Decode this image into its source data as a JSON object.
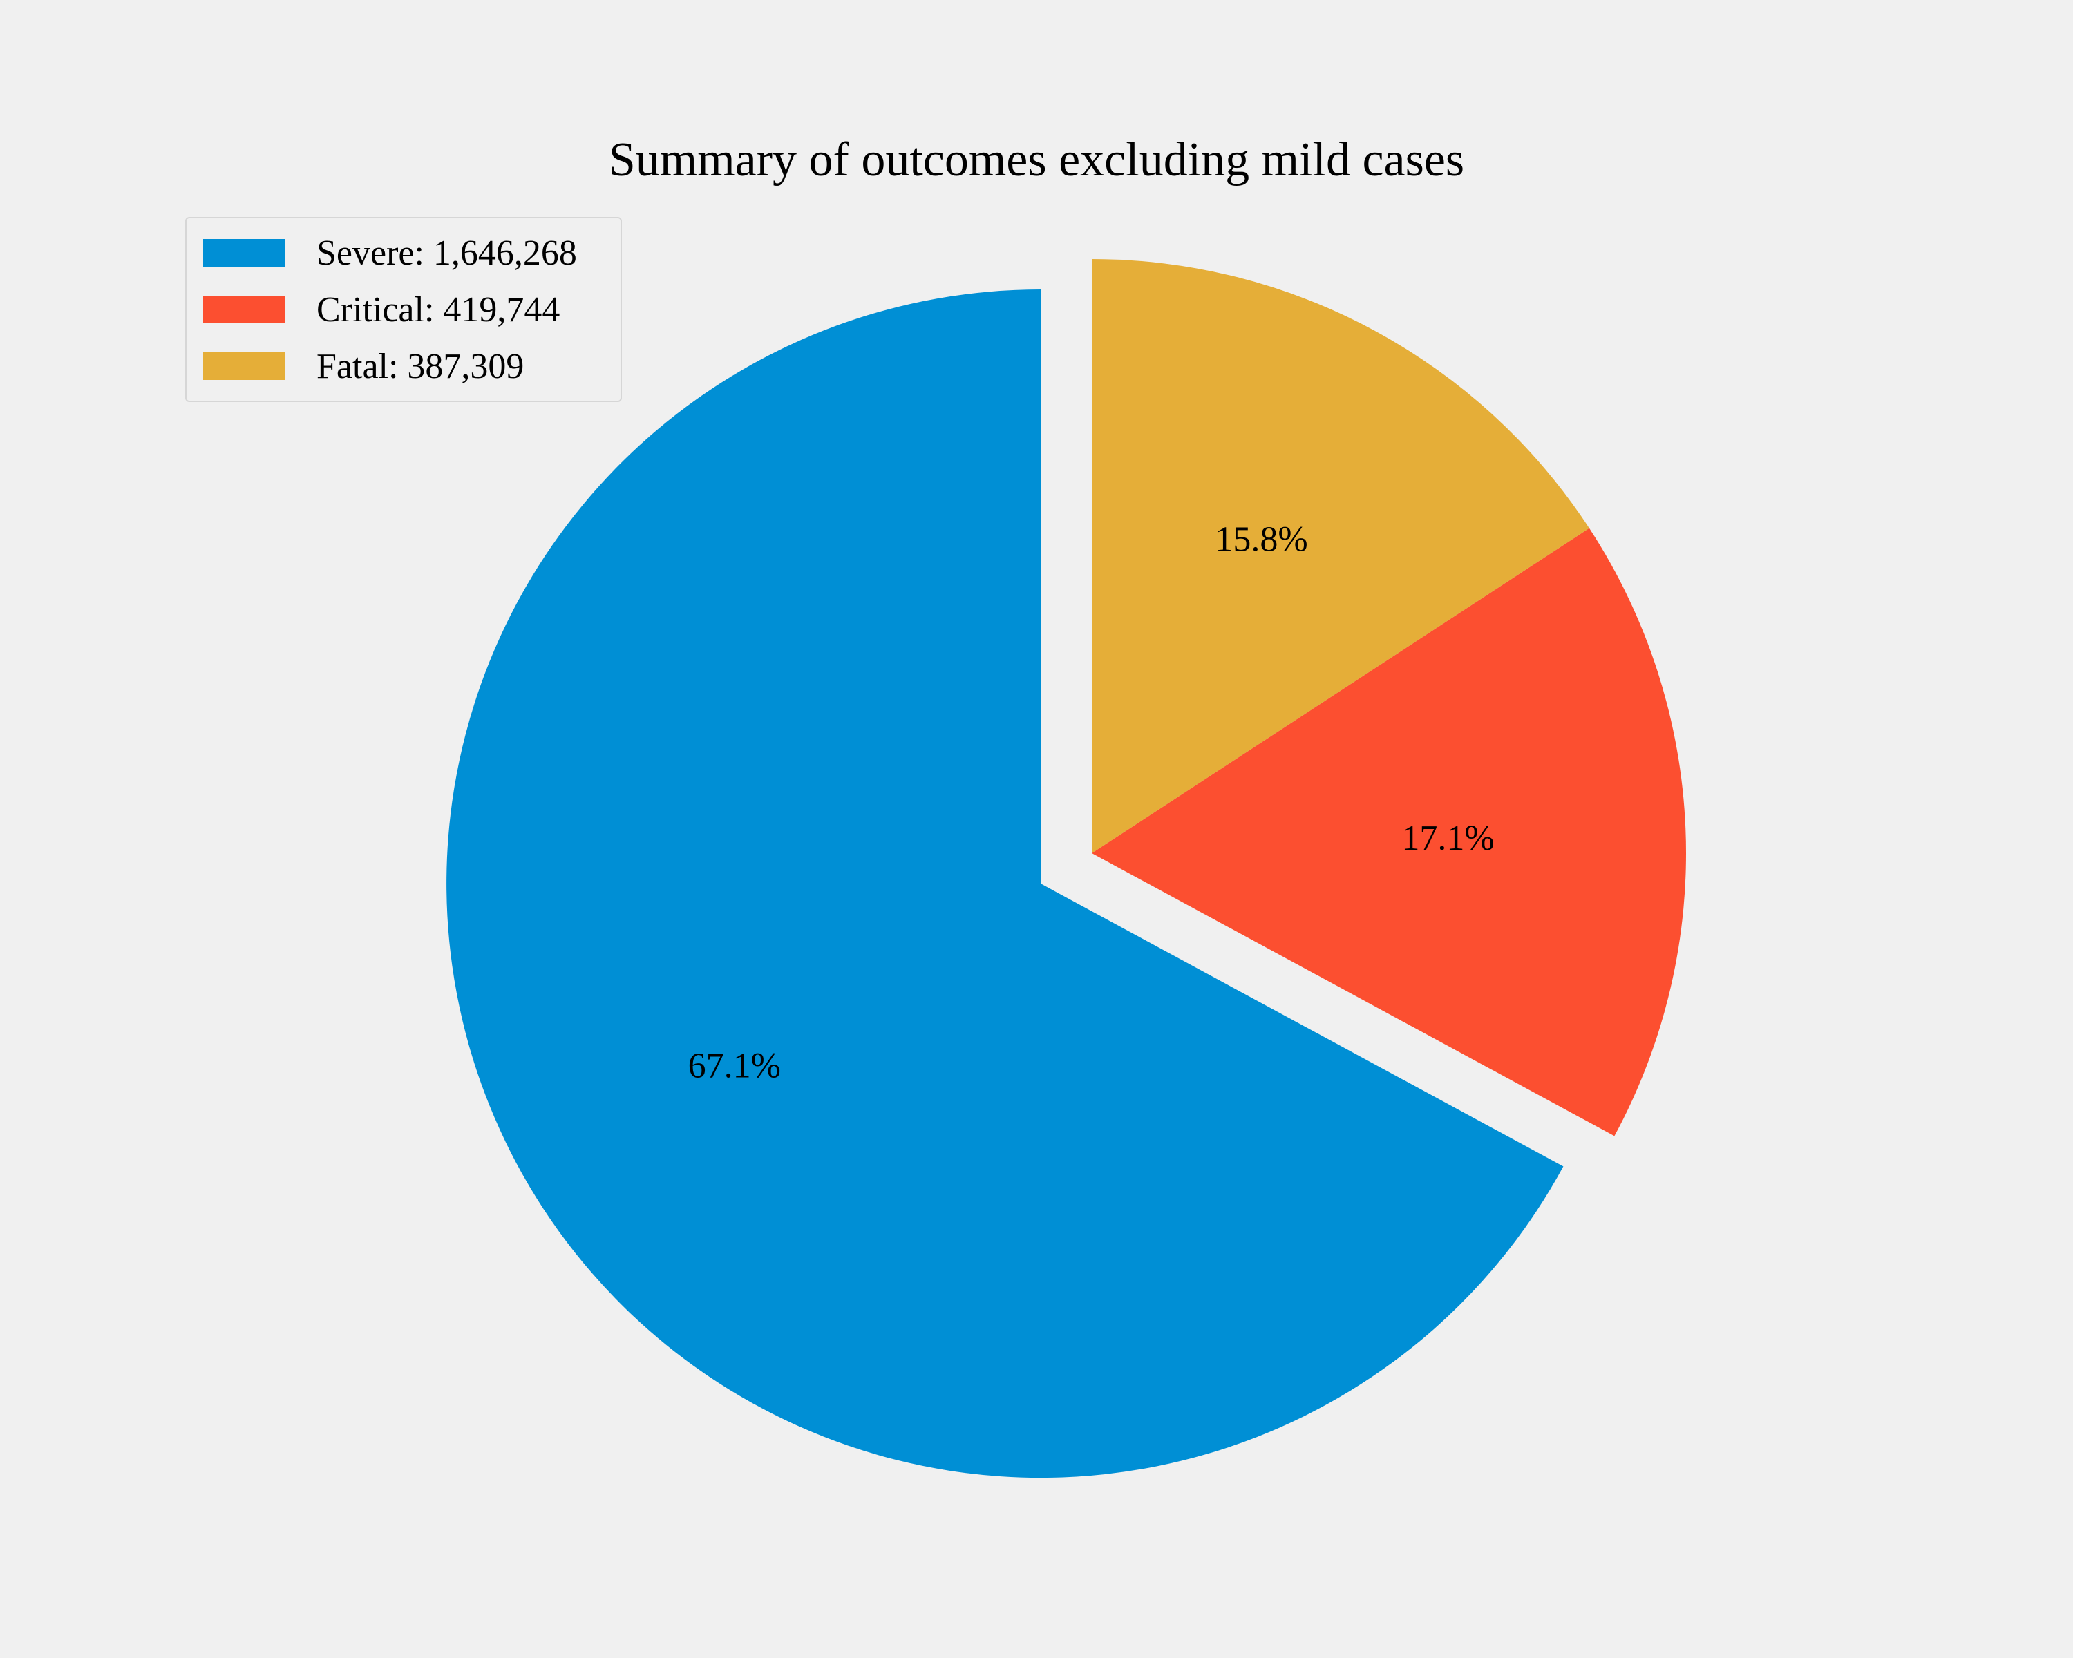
{
  "chart_data": {
    "type": "pie",
    "title": "Summary of outcomes excluding mild cases",
    "start_angle_deg": 90,
    "direction": "counterclockwise",
    "legend_position": "upper-left",
    "slices": [
      {
        "label": "Severe: 1,646,268",
        "value": 1646268,
        "percent_label": "67.1%",
        "color": "#008fd5",
        "exploded": true
      },
      {
        "label": "Critical: 419,744",
        "value": 419744,
        "percent_label": "17.1%",
        "color": "#fc4f30",
        "exploded": false
      },
      {
        "label": "Fatal: 387,309",
        "value": 387309,
        "percent_label": "15.8%",
        "color": "#e5ae38",
        "exploded": false
      }
    ]
  }
}
